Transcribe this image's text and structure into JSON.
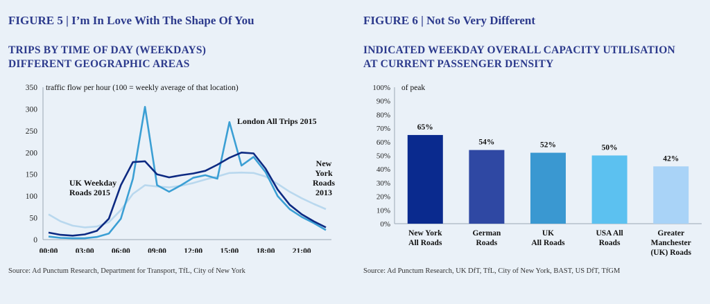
{
  "figures": [
    {
      "figure_label": "FIGURE 5 | I’m In Love With The Shape Of You",
      "title_line1": "TRIPS BY TIME OF DAY (WEEKDAYS)",
      "title_line2": "DIFFERENT GEOGRAPHIC AREAS",
      "source": "Source: Ad Punctum Research, Department for Transport, TfL, City of New York"
    },
    {
      "figure_label": "FIGURE 6 | Not So Very Different",
      "title_line1": "INDICATED WEEKDAY OVERALL CAPACITY UTILISATION",
      "title_line2": "AT CURRENT PASSENGER DENSITY",
      "source": "Source: Ad Punctum Research, UK DfT, TfL, City of New York, BAST, US DfT, TfGM"
    }
  ],
  "colors": {
    "uk": "#0d2a82",
    "london": "#3b9fd4",
    "newyork": "#b9d8ee",
    "axis": "#9aa6b5",
    "bars": [
      "#0a2a8e",
      "#2f48a3",
      "#3a98d1",
      "#5cc1f0",
      "#a9d3f7"
    ]
  },
  "chart_data": [
    {
      "type": "line",
      "ylabel": "traffic flow per hour (100 = weekly average of that location)",
      "ylim": [
        0,
        350
      ],
      "yticks": [
        "0",
        "50",
        "100",
        "150",
        "200",
        "250",
        "300",
        "350"
      ],
      "xtick_labels": [
        "00:00",
        "03:00",
        "06:00",
        "09:00",
        "12:00",
        "15:00",
        "18:00",
        "21:00"
      ],
      "x": [
        "00:00",
        "01:00",
        "02:00",
        "03:00",
        "04:00",
        "05:00",
        "06:00",
        "07:00",
        "08:00",
        "09:00",
        "10:00",
        "11:00",
        "12:00",
        "13:00",
        "14:00",
        "15:00",
        "16:00",
        "17:00",
        "18:00",
        "19:00",
        "20:00",
        "21:00",
        "22:00",
        "23:00"
      ],
      "series": [
        {
          "name": "UK Weekday Roads 2015",
          "label_lines": [
            "UK Weekday",
            "Roads 2015"
          ],
          "values": [
            16,
            11,
            9,
            12,
            20,
            48,
            125,
            178,
            180,
            150,
            143,
            148,
            152,
            158,
            172,
            188,
            200,
            198,
            163,
            115,
            80,
            58,
            42,
            28
          ]
        },
        {
          "name": "London All Trips 2015",
          "label_lines": [
            "London All Trips 2015"
          ],
          "values": [
            7,
            4,
            3,
            3,
            6,
            14,
            48,
            140,
            305,
            125,
            110,
            125,
            142,
            148,
            140,
            270,
            170,
            190,
            155,
            100,
            70,
            52,
            38,
            22
          ]
        },
        {
          "name": "New York Roads 2013",
          "label_lines": [
            "New",
            "York",
            "Roads",
            "2013"
          ],
          "values": [
            58,
            42,
            32,
            28,
            30,
            40,
            68,
            105,
            125,
            122,
            120,
            124,
            130,
            138,
            145,
            153,
            154,
            153,
            145,
            128,
            110,
            95,
            82,
            70
          ]
        }
      ]
    },
    {
      "type": "bar",
      "ylabel": "of peak",
      "ylim": [
        0,
        100
      ],
      "yticks": [
        "0%",
        "10%",
        "20%",
        "30%",
        "40%",
        "50%",
        "60%",
        "70%",
        "80%",
        "90%",
        "100%"
      ],
      "categories": [
        "New York All Roads",
        "German Roads",
        "UK All Roads",
        "USA All Roads",
        "Greater Manchester (UK) Roads"
      ],
      "category_lines": [
        [
          "New York",
          "All Roads"
        ],
        [
          "German",
          "Roads"
        ],
        [
          "UK",
          "All Roads"
        ],
        [
          "USA All",
          "Roads"
        ],
        [
          "Greater",
          "Manchester",
          "(UK) Roads"
        ]
      ],
      "values": [
        65,
        54,
        52,
        50,
        42
      ],
      "value_labels": [
        "65%",
        "54%",
        "52%",
        "50%",
        "42%"
      ]
    }
  ]
}
